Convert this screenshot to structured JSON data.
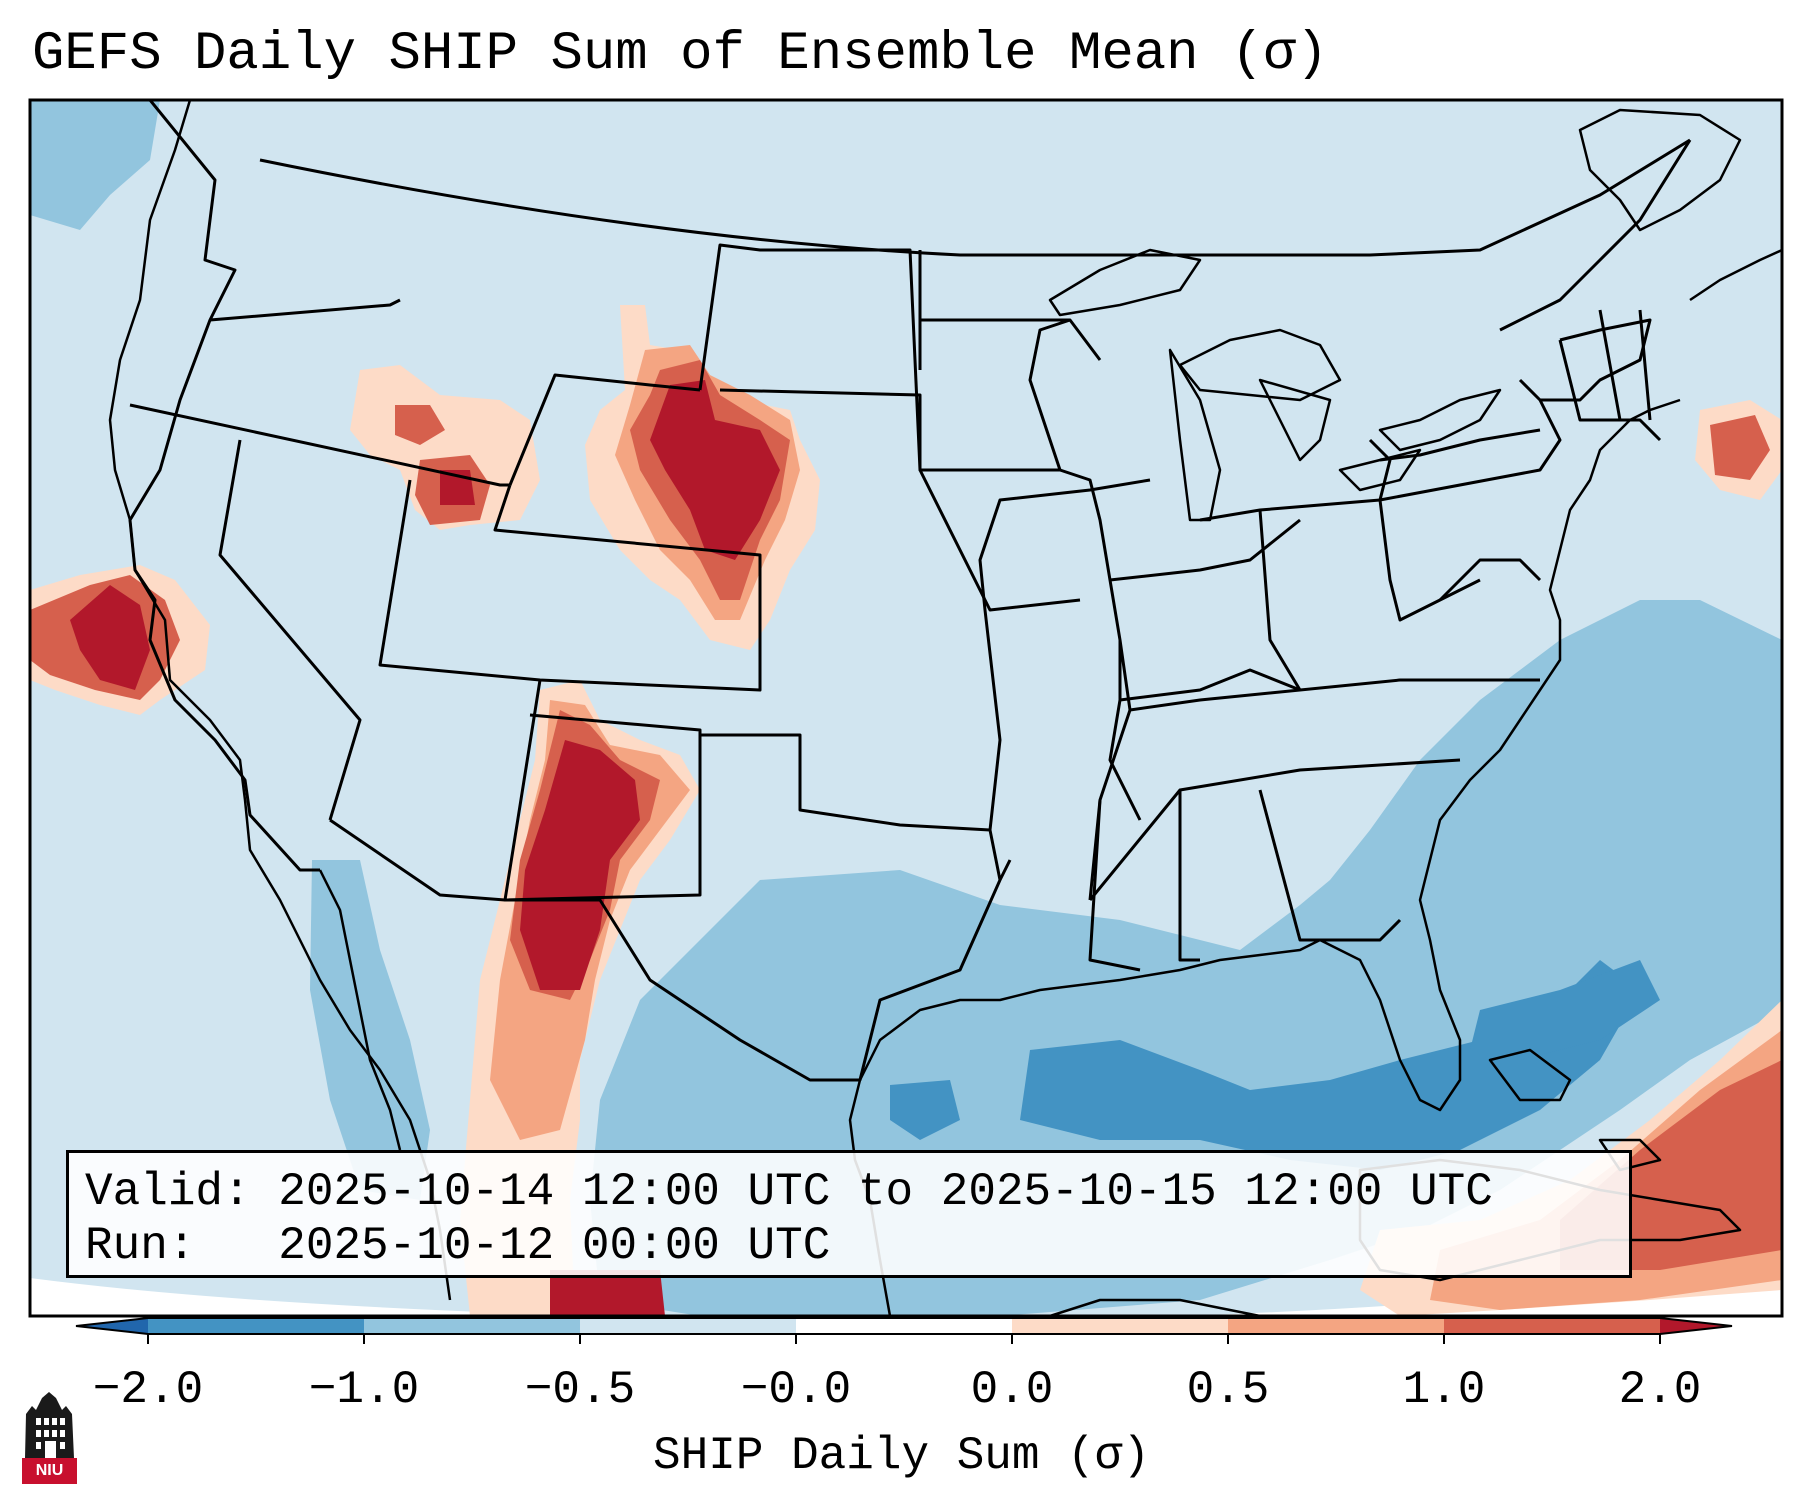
{
  "title": "GEFS Daily SHIP Sum of Ensemble Mean (σ)",
  "info": {
    "valid_line": "Valid: 2025-10-14 12:00 UTC to 2025-10-15 12:00 UTC",
    "run_line": "Run:   2025-10-12 00:00 UTC"
  },
  "colorbar": {
    "label": "SHIP Daily Sum (σ)",
    "ticks": [
      "−2.0",
      "−1.0",
      "−0.5",
      "−0.0",
      "0.0",
      "0.5",
      "1.0",
      "2.0"
    ],
    "bins": [
      {
        "range": "< -2.0",
        "color": "#2166ac"
      },
      {
        "range": "-2.0 to -1.0",
        "color": "#4393c3"
      },
      {
        "range": "-1.0 to -0.5",
        "color": "#92c5de"
      },
      {
        "range": "-0.5 to 0.0",
        "color": "#d1e5f0"
      },
      {
        "range": "0.0",
        "color": "#ffffff"
      },
      {
        "range": "0.0 to 0.5",
        "color": "#fddbc7"
      },
      {
        "range": "0.5 to 1.0",
        "color": "#f4a582"
      },
      {
        "range": "1.0 to 2.0",
        "color": "#d6604d"
      },
      {
        "range": "> 2.0",
        "color": "#b2182b"
      }
    ]
  },
  "logo": {
    "text": "NIU",
    "icon": "niu-building-icon"
  }
}
